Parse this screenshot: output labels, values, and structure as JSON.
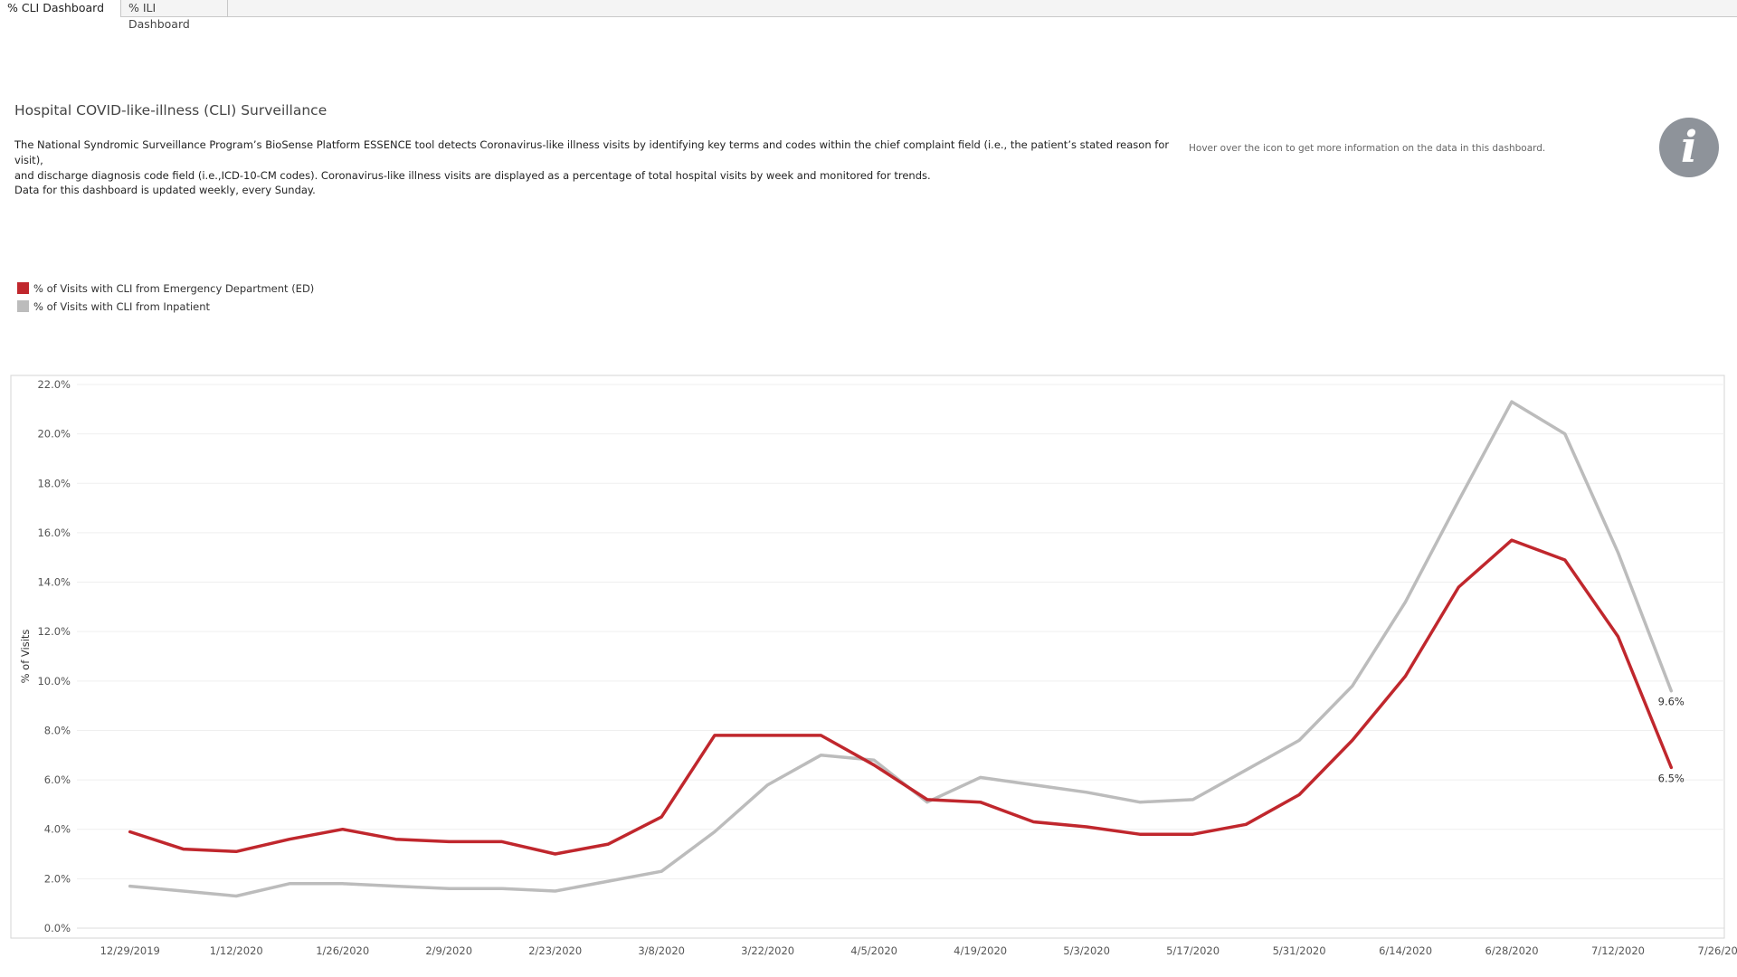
{
  "tabs": [
    {
      "label": "% CLI Dashboard",
      "active": true
    },
    {
      "label": "% ILI Dashboard",
      "active": false
    }
  ],
  "header": {
    "title": "Hospital COVID-like-illness (CLI) Surveillance",
    "description_line1": "The National Syndromic Surveillance Program’s BioSense Platform ESSENCE tool detects Coronavirus-like illness visits by identifying key terms and codes within the chief complaint field (i.e., the patient’s stated reason for visit),",
    "description_line2": "and discharge diagnosis code field (i.e.,ICD-10-CM codes).  Coronavirus-like illness visits are displayed as a percentage of total hospital visits by week and monitored for trends.",
    "update_note": "Data for this dashboard is updated weekly, every Sunday.",
    "hover_note": "Hover over the icon to get more information on the data in this dashboard.",
    "info_icon": "info-icon"
  },
  "colors": {
    "ed": "#c0272d",
    "inpatient": "#bcbcbc"
  },
  "legend": [
    {
      "label": "% of Visits with CLI from Emergency Department (ED)",
      "color": "#c0272d"
    },
    {
      "label": "% of Visits with CLI from Inpatient",
      "color": "#bcbcbc"
    }
  ],
  "chart_data": {
    "type": "line",
    "title": "",
    "xlabel": "",
    "ylabel": "% of Visits",
    "ylim": [
      0,
      22
    ],
    "xlim": [
      "12/22/2019",
      "7/26/2020"
    ],
    "y_ticks": [
      "0.0%",
      "2.0%",
      "4.0%",
      "6.0%",
      "8.0%",
      "10.0%",
      "12.0%",
      "14.0%",
      "16.0%",
      "18.0%",
      "20.0%",
      "22.0%"
    ],
    "x_ticks": [
      "12/29/2019",
      "1/12/2020",
      "1/26/2020",
      "2/9/2020",
      "2/23/2020",
      "3/8/2020",
      "3/22/2020",
      "4/5/2020",
      "4/19/2020",
      "5/3/2020",
      "5/17/2020",
      "5/31/2020",
      "6/14/2020",
      "6/28/2020",
      "7/12/2020",
      "7/26/2020"
    ],
    "grid": "horizontal",
    "x": [
      "12/29/2019",
      "1/5/2020",
      "1/12/2020",
      "1/19/2020",
      "1/26/2020",
      "2/2/2020",
      "2/9/2020",
      "2/16/2020",
      "2/23/2020",
      "3/1/2020",
      "3/8/2020",
      "3/15/2020",
      "3/22/2020",
      "3/29/2020",
      "4/5/2020",
      "4/12/2020",
      "4/19/2020",
      "4/26/2020",
      "5/3/2020",
      "5/10/2020",
      "5/17/2020",
      "5/24/2020",
      "5/31/2020",
      "6/7/2020",
      "6/14/2020",
      "6/21/2020",
      "6/28/2020",
      "7/5/2020",
      "7/12/2020",
      "7/19/2020"
    ],
    "series": [
      {
        "name": "% of Visits with CLI from Emergency Department (ED)",
        "color": "#c0272d",
        "values": [
          3.9,
          3.2,
          3.1,
          3.6,
          4.0,
          3.6,
          3.5,
          3.5,
          3.0,
          3.4,
          4.5,
          7.8,
          7.8,
          7.8,
          6.6,
          5.2,
          5.1,
          4.3,
          4.1,
          3.8,
          3.8,
          4.2,
          5.4,
          7.6,
          10.2,
          13.8,
          15.7,
          14.9,
          11.8,
          6.5
        ],
        "end_label": "6.5%"
      },
      {
        "name": "% of Visits with CLI from Inpatient",
        "color": "#bcbcbc",
        "values": [
          1.7,
          1.5,
          1.3,
          1.8,
          1.8,
          1.7,
          1.6,
          1.6,
          1.5,
          1.9,
          2.3,
          3.9,
          5.8,
          7.0,
          6.8,
          5.1,
          6.1,
          5.8,
          5.5,
          5.1,
          5.2,
          6.4,
          7.6,
          9.8,
          13.2,
          17.3,
          21.3,
          20.0,
          15.2,
          9.6
        ],
        "end_label": "9.6%"
      }
    ]
  }
}
